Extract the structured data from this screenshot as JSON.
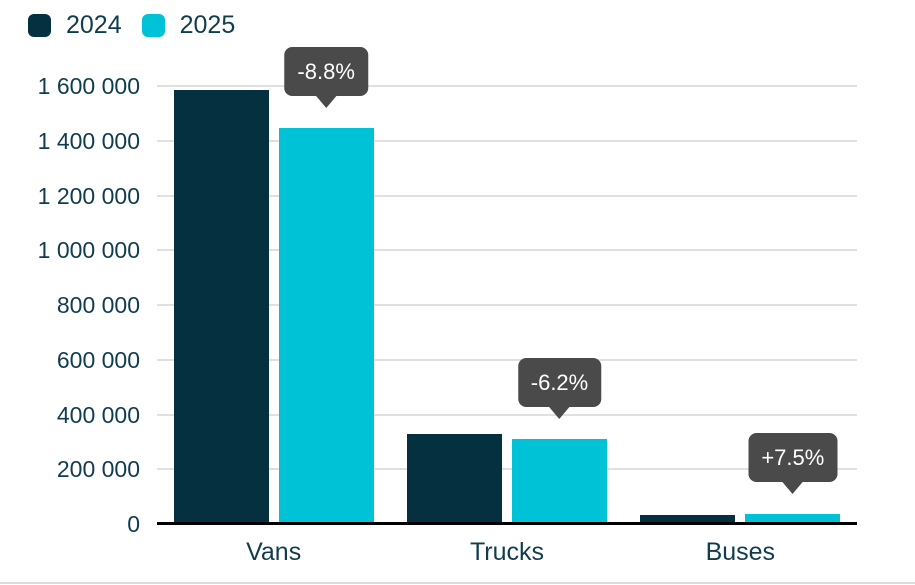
{
  "colors": {
    "series_2024": "#04303f",
    "series_2025": "#00c2d6",
    "text": "#103c4e",
    "callout_bg": "#4a4a4a",
    "callout_text": "#ffffff",
    "gridline": "#e0e0e0",
    "axis_line": "#000000",
    "background": "#ffffff"
  },
  "legend": [
    {
      "label": "2024",
      "color": "#04303f"
    },
    {
      "label": "2025",
      "color": "#00c2d6"
    }
  ],
  "chart_data": {
    "type": "bar",
    "title": "",
    "xlabel": "",
    "ylabel": "",
    "categories": [
      "Vans",
      "Trucks",
      "Buses"
    ],
    "series": [
      {
        "name": "2024",
        "color": "#04303f",
        "values": [
          1585000,
          330000,
          33000
        ]
      },
      {
        "name": "2025",
        "color": "#00c2d6",
        "values": [
          1445000,
          309500,
          35500
        ]
      }
    ],
    "annotations": [
      {
        "category": "Vans",
        "label": "-8.8%"
      },
      {
        "category": "Trucks",
        "label": "-6.2%"
      },
      {
        "category": "Buses",
        "label": "+7.5%"
      }
    ],
    "ylim": [
      0,
      1600000
    ],
    "ytick_step": 200000,
    "ytick_labels": [
      "0",
      "200 000",
      "400 000",
      "600 000",
      "800 000",
      "1 000 000",
      "1 200 000",
      "1 400 000",
      "1 600 000"
    ],
    "grid": true,
    "legend_position": "top-left"
  }
}
